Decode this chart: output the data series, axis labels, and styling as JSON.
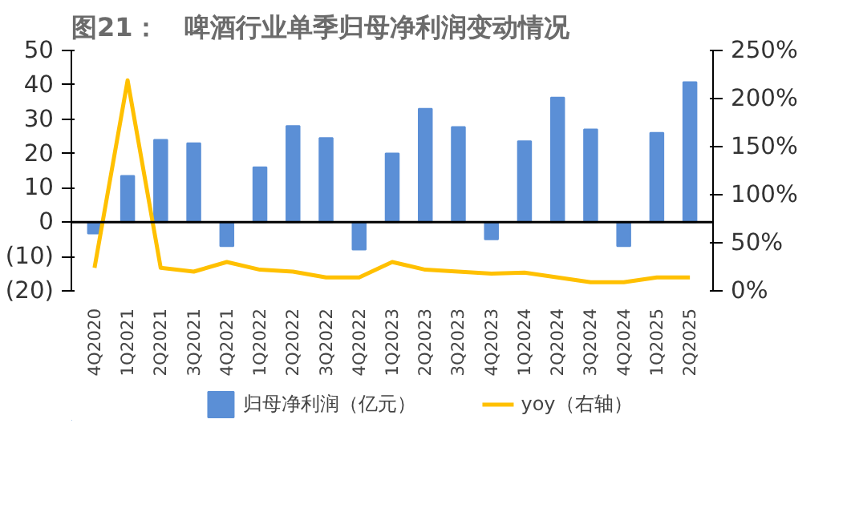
{
  "chart_data": {
    "type": "bar",
    "title": "图21：　啤酒行业单季归母净利润变动情况",
    "categories": [
      "4Q2020",
      "1Q2021",
      "2Q2021",
      "3Q2021",
      "4Q2021",
      "1Q2022",
      "2Q2022",
      "3Q2022",
      "4Q2022",
      "1Q2023",
      "2Q2023",
      "3Q2023",
      "4Q2023",
      "1Q2024",
      "2Q2024",
      "3Q2024",
      "4Q2024",
      "1Q2025",
      "2Q2025"
    ],
    "series": [
      {
        "name": "归母净利润（亿元）",
        "color": "#5b8fd6",
        "values": [
          -3.3,
          13.5,
          24,
          23,
          -7,
          16,
          28,
          24.5,
          -8,
          20,
          33,
          27.7,
          -5,
          23.6,
          36.3,
          27,
          -7,
          26,
          40.8
        ]
      },
      {
        "name": "yoy（右轴）",
        "type": "line",
        "axis": "y2",
        "color": "#ffc000",
        "values": [
          24,
          219,
          24,
          20,
          30,
          22,
          20,
          14,
          14,
          30,
          22,
          20,
          18,
          19,
          14,
          9,
          9,
          14,
          14
        ]
      }
    ],
    "ylim": [
      -20,
      50
    ],
    "yticks": [
      {
        "value": -20,
        "label": "(20)"
      },
      {
        "value": -10,
        "label": "(10)"
      },
      0,
      10,
      20,
      30,
      40,
      50
    ],
    "y2lim": [
      0,
      250
    ],
    "y2ticks": [
      {
        "value": 0,
        "label": "0%"
      },
      {
        "value": 50,
        "label": "50%"
      },
      {
        "value": 100,
        "label": "100%"
      },
      {
        "value": 150,
        "label": "150%"
      },
      {
        "value": 200,
        "label": "200%"
      },
      {
        "value": 250,
        "label": "250%"
      }
    ],
    "ref_lines": [
      {
        "axis": "y",
        "value": 0,
        "color": "#000000"
      }
    ],
    "legend": "bottom",
    "grid": false,
    "marker": "none",
    "line_style": "solid"
  }
}
